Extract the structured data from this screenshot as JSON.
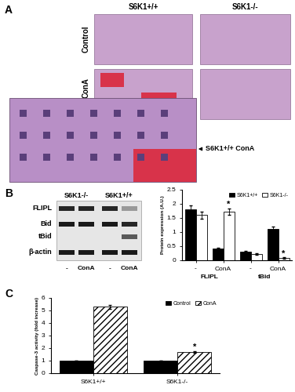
{
  "panel_labels": [
    "A",
    "B",
    "C"
  ],
  "histology": {
    "columns": [
      "S6K1+/+",
      "S6K1-/-"
    ],
    "rows": [
      "Control",
      "ConA"
    ],
    "inset_label": "S6K1+/+ ConA"
  },
  "blot": {
    "groups": [
      "S6K1-/-",
      "S6K1+/+"
    ],
    "bands": [
      "FLIPL",
      "Bid",
      "tBid",
      "β-actin"
    ],
    "lanes": [
      "-",
      "ConA",
      "-",
      "ConA"
    ]
  },
  "chart_data": [
    {
      "type": "bar",
      "y_label": "Protein expression (A.U.)",
      "categories": [
        "-",
        "ConA",
        "-",
        "ConA"
      ],
      "groups": [
        "FLIPL",
        "tBid"
      ],
      "series": [
        {
          "name": "S6K1+/+",
          "color": "#000000",
          "values": [
            1.8,
            0.42,
            0.3,
            1.12
          ],
          "errors": [
            0.15,
            0.03,
            0.03,
            0.08
          ]
        },
        {
          "name": "S6K1-/-",
          "color": "#ffffff",
          "values": [
            1.6,
            1.72,
            0.22,
            0.08
          ],
          "errors": [
            0.12,
            0.12,
            0.02,
            0.02
          ],
          "annotations": [
            null,
            "*",
            null,
            "*"
          ]
        }
      ],
      "ylim": [
        0,
        2.5
      ],
      "yticks": [
        0,
        0.5,
        1,
        1.5,
        2,
        2.5
      ],
      "legend": "upper right"
    },
    {
      "type": "bar",
      "y_label": "Caspase-3 activity (fold increase)",
      "categories": [
        "S6K1+/+",
        "S6K1-/-"
      ],
      "series": [
        {
          "name": "Control",
          "color": "#000000",
          "values": [
            1,
            1
          ],
          "errors": [
            0.03,
            0.03
          ]
        },
        {
          "name": "ConA",
          "color": "#ffffff",
          "values": [
            5.3,
            1.7
          ],
          "errors": [
            0.15,
            0.08
          ],
          "annotations": [
            null,
            "*"
          ]
        }
      ],
      "ylim": [
        0,
        6
      ],
      "yticks": [
        0,
        1,
        2,
        3,
        4,
        5,
        6
      ],
      "legend": "upper right"
    }
  ]
}
